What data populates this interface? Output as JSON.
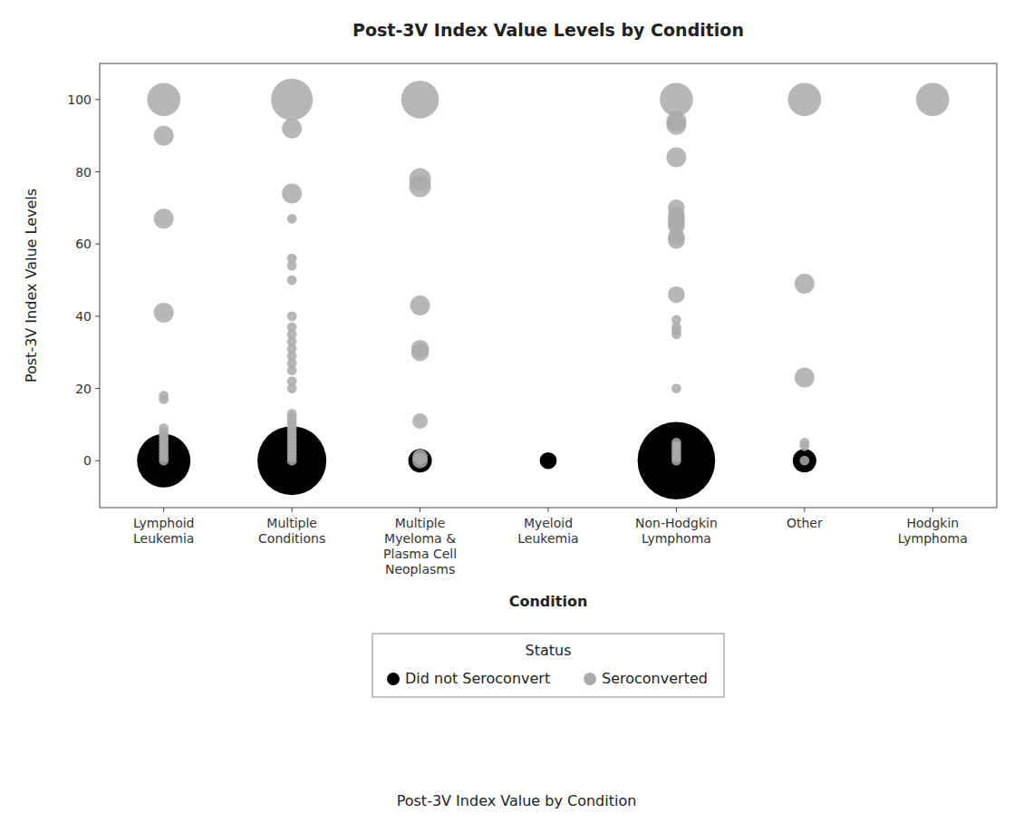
{
  "chart_data": {
    "type": "scatter",
    "title": "Post-3V Index Value Levels by Condition",
    "x_label": "Condition",
    "y_label": "Post-3V Index Value Levels",
    "caption": "Post-3V Index Value by Condition",
    "legend_title": "Status",
    "categories": [
      "Lymphoid\nLeukemia",
      "Multiple\nConditions",
      "Multiple\nMyeloma &\nPlasma Cell\nNeoplasms",
      "Myeloid\nLeukemia",
      "Non-Hodgkin\nLymphoma",
      "Other",
      "Hodgkin\nLymphoma"
    ],
    "series": [
      {
        "name": "Did not Seroconvert",
        "color": "#000000",
        "values": [
          [
            0
          ],
          [
            0
          ],
          [
            0
          ],
          [
            0
          ],
          [
            0
          ],
          [
            0
          ],
          []
        ],
        "sizes": [
          [
            1800
          ],
          [
            3000
          ],
          [
            350
          ],
          [
            180
          ],
          [
            3800
          ],
          [
            350
          ],
          []
        ]
      },
      {
        "name": "Seroconverted",
        "color": "#aaaaaa",
        "values": [
          [
            0,
            1,
            2,
            3,
            4,
            5,
            6,
            7,
            8,
            9,
            17,
            18,
            41,
            67,
            90,
            100
          ],
          [
            0,
            1,
            2,
            3,
            4,
            5,
            6,
            7,
            8,
            9,
            10,
            11,
            12,
            13,
            20,
            22,
            25,
            27,
            29,
            31,
            33,
            35,
            37,
            40,
            50,
            54,
            56,
            67,
            74,
            92,
            100
          ],
          [
            0,
            1,
            11,
            30,
            31,
            43,
            76,
            78,
            100
          ],
          [],
          [
            0,
            1,
            2,
            3,
            4,
            5,
            20,
            35,
            36,
            37,
            39,
            46,
            61,
            62,
            65,
            66,
            67,
            68,
            70,
            84,
            93,
            94,
            100
          ],
          [
            0,
            4,
            5,
            23,
            49,
            100
          ],
          [
            100
          ]
        ],
        "sizes": [
          [
            60,
            60,
            60,
            60,
            60,
            60,
            60,
            60,
            60,
            60,
            60,
            60,
            250,
            250,
            250,
            700
          ],
          [
            60,
            60,
            60,
            60,
            60,
            60,
            60,
            60,
            60,
            60,
            60,
            60,
            60,
            60,
            60,
            60,
            60,
            60,
            60,
            60,
            60,
            60,
            60,
            60,
            60,
            60,
            60,
            60,
            250,
            250,
            1100
          ],
          [
            150,
            150,
            150,
            200,
            200,
            250,
            300,
            300,
            900
          ],
          [],
          [
            60,
            60,
            60,
            60,
            60,
            60,
            60,
            60,
            60,
            60,
            60,
            180,
            180,
            180,
            180,
            180,
            180,
            180,
            180,
            250,
            250,
            250,
            700
          ],
          [
            60,
            60,
            60,
            250,
            250,
            700
          ],
          [
            700
          ]
        ]
      }
    ],
    "ylim": [
      -13,
      110
    ],
    "yticks": [
      0,
      20,
      40,
      60,
      80,
      100
    ],
    "grid": false,
    "legend": "bottom"
  }
}
